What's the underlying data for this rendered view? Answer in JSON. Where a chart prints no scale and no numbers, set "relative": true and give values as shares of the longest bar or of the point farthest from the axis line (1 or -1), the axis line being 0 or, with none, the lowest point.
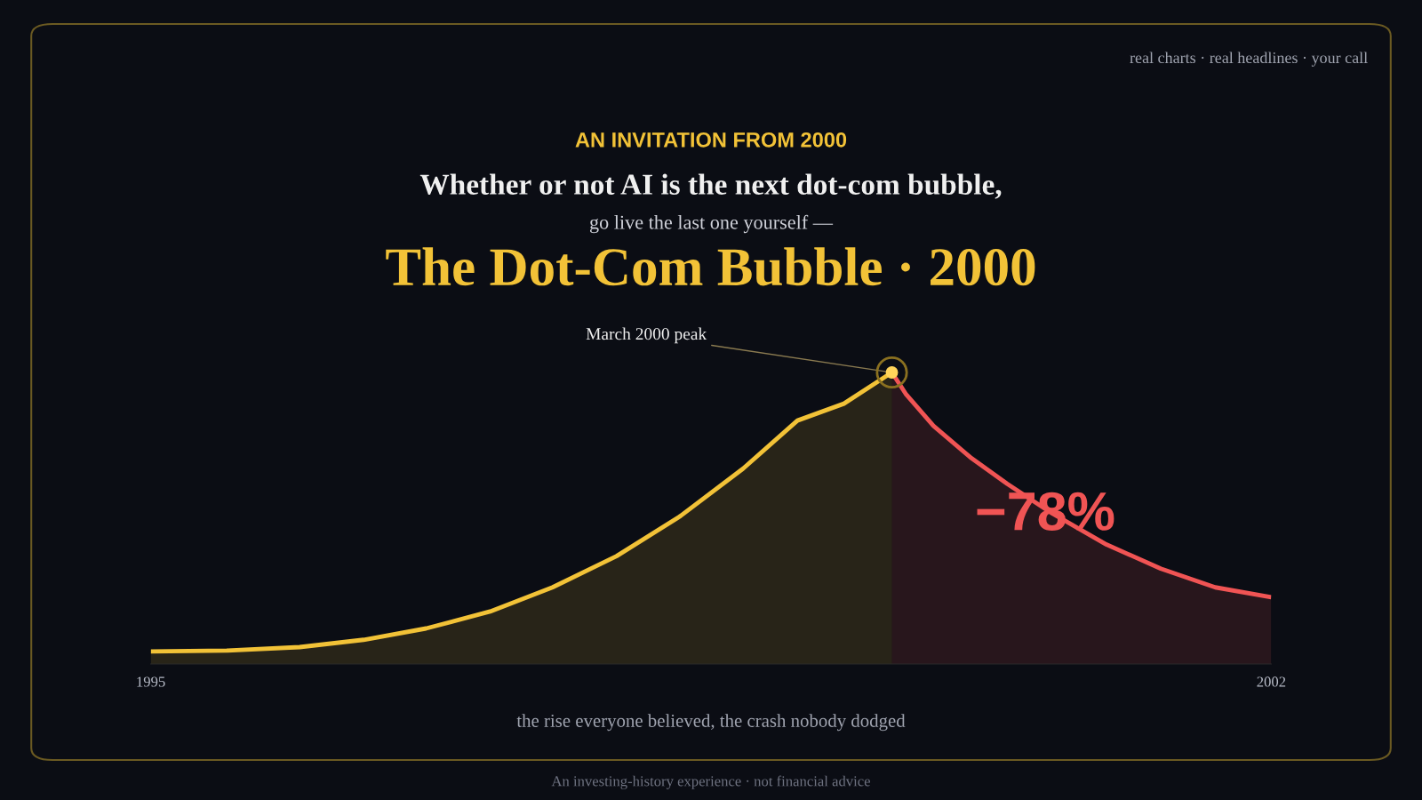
{
  "chart_data": {
    "type": "area",
    "title": "The Dot-Com Bubble · 2000",
    "relative": true,
    "xlim": [
      1995,
      2002
    ],
    "xticks": [
      1995,
      2002
    ],
    "grid": false,
    "legend": false,
    "marker": "none",
    "line_style": "solid",
    "series": [
      {
        "color": "#f2c237",
        "x": [
          1995,
          1995.48,
          1995.93,
          1996.33,
          1996.72,
          1997.12,
          1997.51,
          1997.91,
          1998.31,
          1998.7,
          1999.04,
          1999.33,
          1999.63
        ],
        "values": [
          0.043,
          0.046,
          0.058,
          0.083,
          0.122,
          0.18,
          0.263,
          0.37,
          0.508,
          0.67,
          0.835,
          0.893,
          1
        ]
      },
      {
        "color": "#f05454",
        "x": [
          1999.63,
          1999.72,
          1999.89,
          2000.12,
          2000.35,
          2000.63,
          2000.97,
          2001.31,
          2001.65,
          2002
        ],
        "values": [
          1,
          0.924,
          0.817,
          0.709,
          0.618,
          0.517,
          0.41,
          0.327,
          0.263,
          0.229
        ]
      }
    ],
    "annotations": [
      "real charts · real headlines · your call",
      "AN INVITATION FROM 2000",
      "Whether or not AI is the next dot-com bubble,",
      "go live the last one yourself —",
      {
        "text": "March 2000 peak",
        "x": 1999.63,
        "y": 1
      },
      "−78%",
      "the rise everyone believed, the crash nobody dodged",
      "An investing-history experience · not financial advice"
    ]
  }
}
